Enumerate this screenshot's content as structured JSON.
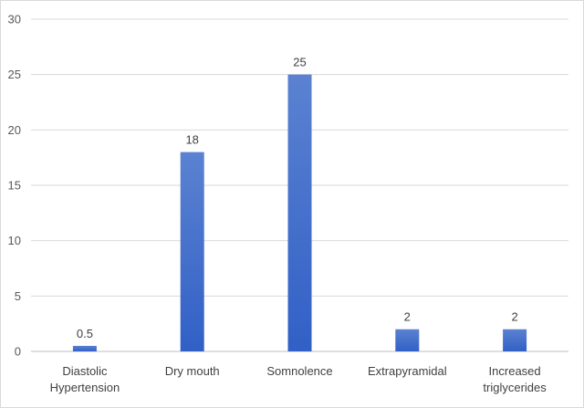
{
  "chart_data": {
    "type": "bar",
    "title": "",
    "xlabel": "",
    "ylabel": "",
    "categories": [
      [
        "Diastolic",
        "Hypertension"
      ],
      [
        "Dry mouth"
      ],
      [
        "Somnolence"
      ],
      [
        "Extrapyramidal"
      ],
      [
        "Increased",
        "triglycerides"
      ]
    ],
    "values": [
      0.5,
      18,
      25,
      2,
      2
    ],
    "data_labels": [
      "0.5",
      "18",
      "25",
      "2",
      "2"
    ],
    "ylim": [
      0,
      30
    ],
    "yticks": [
      0,
      5,
      10,
      15,
      20,
      25,
      30
    ],
    "grid": true,
    "legend": "none",
    "bar_color_top": "#5b82d1",
    "bar_color_bottom": "#3160c6"
  }
}
